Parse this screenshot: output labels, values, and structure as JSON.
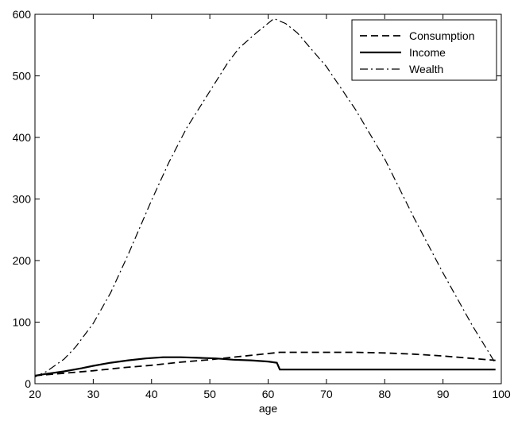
{
  "chart_data": {
    "type": "line",
    "title": "",
    "xlabel": "age",
    "ylabel": "",
    "xlim": [
      20,
      100
    ],
    "ylim": [
      0,
      600
    ],
    "x_ticks": [
      20,
      30,
      40,
      50,
      60,
      70,
      80,
      90,
      100
    ],
    "y_ticks": [
      0,
      100,
      200,
      300,
      400,
      500,
      600
    ],
    "grid": false,
    "legend_position": "top-right",
    "series": [
      {
        "name": "Consumption",
        "line_style": "dashed",
        "color": "#000000",
        "x": [
          20,
          25,
          30,
          35,
          40,
          45,
          50,
          55,
          58,
          62,
          65,
          70,
          75,
          80,
          85,
          90,
          95,
          99
        ],
        "y": [
          13,
          17,
          21,
          26,
          30,
          35,
          39,
          44,
          47,
          51,
          51,
          51,
          51,
          50,
          48,
          45,
          41,
          38
        ]
      },
      {
        "name": "Income",
        "line_style": "solid",
        "color": "#000000",
        "x": [
          20,
          22,
          25,
          28,
          30,
          33,
          36,
          39,
          42,
          45,
          48,
          51,
          54,
          57,
          60,
          61.5,
          62,
          65,
          70,
          80,
          90,
          99
        ],
        "y": [
          13,
          16,
          20,
          25,
          29,
          34,
          38,
          41,
          43,
          43,
          42,
          41,
          39,
          38,
          36,
          34,
          23,
          23,
          23,
          23,
          23,
          23
        ]
      },
      {
        "name": "Wealth",
        "line_style": "dash-dot",
        "color": "#000000",
        "x": [
          20,
          22,
          25,
          27,
          30,
          33,
          36,
          40,
          43,
          46,
          50,
          53,
          55,
          58,
          61,
          63,
          65,
          70,
          75,
          80,
          85,
          90,
          95,
          99
        ],
        "y": [
          11,
          20,
          40,
          60,
          98,
          148,
          210,
          298,
          360,
          415,
          475,
          520,
          545,
          570,
          593,
          585,
          570,
          515,
          445,
          365,
          270,
          180,
          95,
          33
        ]
      }
    ]
  }
}
